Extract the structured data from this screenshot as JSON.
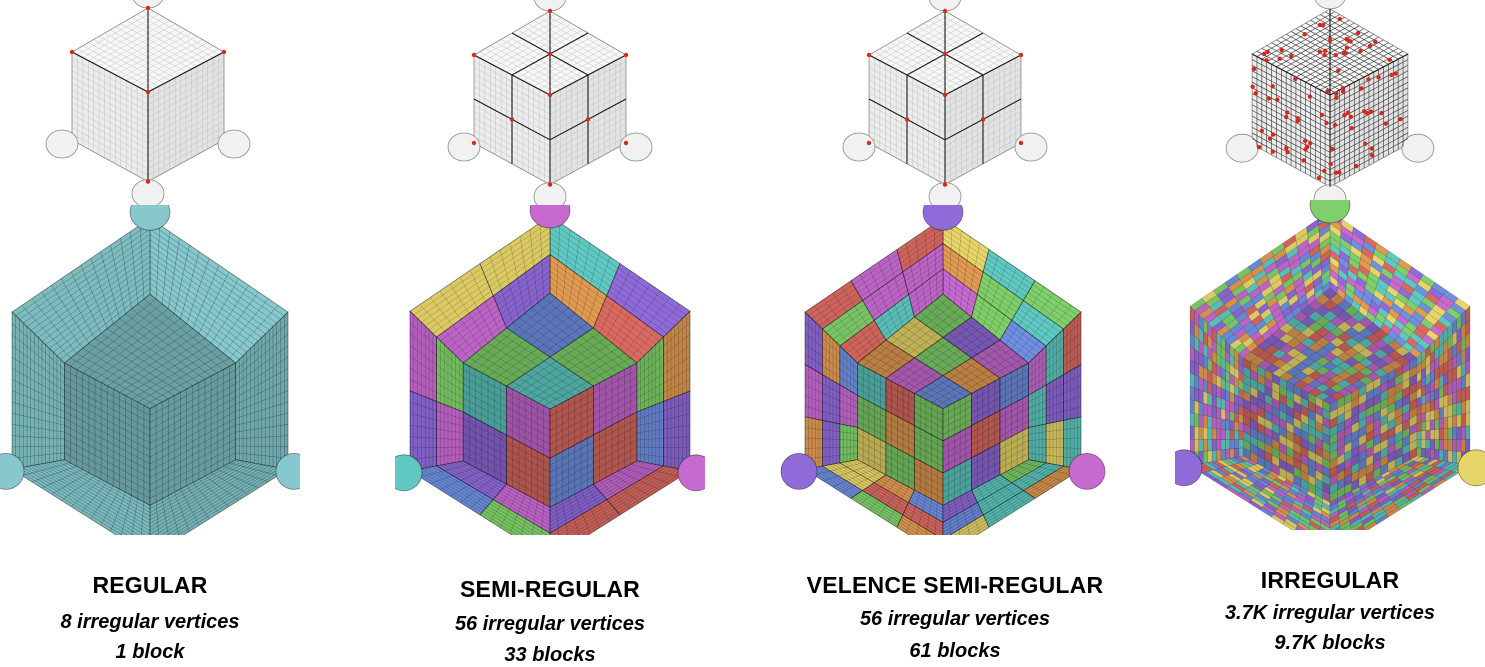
{
  "palette": {
    "surface_white": "#f4f4f4",
    "surface_edge": "#6e6e6e",
    "feature_line": "#1a1a1a",
    "irregular_vertex": "#d42a1e",
    "regular_block": "#86c8cc",
    "block_colors": [
      "#d96a62",
      "#e8d56a",
      "#8f6ad9",
      "#6f8fe0",
      "#7fcf6a",
      "#5fc8c0",
      "#c66ad0",
      "#e09a52"
    ]
  },
  "panels": [
    {
      "title": "REGULAR",
      "vertices": "8 irregular vertices",
      "blocks": "1 block",
      "surface_icon": "smooth-cube-surface-icon",
      "hex_icon": "hex-mesh-cutaway-icon",
      "style": "regular"
    },
    {
      "title": "SEMI-REGULAR",
      "vertices": "56 irregular vertices",
      "blocks": "33 blocks",
      "surface_icon": "smooth-cube-surface-icon",
      "hex_icon": "hex-mesh-cutaway-icon",
      "style": "semi"
    },
    {
      "title": "VELENCE SEMI-REGULAR",
      "vertices": "56 irregular vertices",
      "blocks": "61 blocks",
      "surface_icon": "smooth-cube-surface-icon",
      "hex_icon": "hex-mesh-cutaway-icon",
      "style": "valence"
    },
    {
      "title": "IRREGULAR",
      "vertices": "3.7K irregular vertices",
      "blocks": "9.7K blocks",
      "surface_icon": "smooth-cube-surface-icon",
      "hex_icon": "hex-mesh-cutaway-icon",
      "style": "irregular"
    }
  ]
}
